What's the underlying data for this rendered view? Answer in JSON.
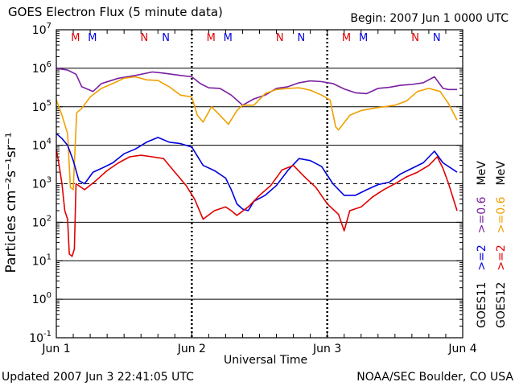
{
  "header": {
    "title": "GOES Electron Flux (5 minute data)",
    "begin": "Begin: 2007 Jun 1 0000 UTC"
  },
  "footer": {
    "updated": "Updated 2007 Jun  3 22:41:05 UTC",
    "source": "NOAA/SEC Boulder, CO USA"
  },
  "chart_data": {
    "type": "line",
    "title": "GOES Electron Flux (5 minute data)",
    "xlabel": "Universal Time",
    "ylabel": "Particles cm⁻²s⁻¹sr⁻¹",
    "yscale": "log",
    "ylim": [
      0.1,
      10000000
    ],
    "xlim_hours": [
      0,
      72
    ],
    "x_ticks": [
      {
        "hour": 0,
        "label": "Jun 1"
      },
      {
        "hour": 24,
        "label": "Jun 2"
      },
      {
        "hour": 48,
        "label": "Jun 3"
      },
      {
        "hour": 72,
        "label": "Jun 4"
      }
    ],
    "y_ticks": [
      {
        "value": 0.1,
        "base": "10",
        "exp": "-1"
      },
      {
        "value": 1,
        "base": "10",
        "exp": "0"
      },
      {
        "value": 10,
        "base": "10",
        "exp": "1"
      },
      {
        "value": 100,
        "base": "10",
        "exp": "2"
      },
      {
        "value": 1000,
        "base": "10",
        "exp": "3"
      },
      {
        "value": 10000,
        "base": "10",
        "exp": "4"
      },
      {
        "value": 100000,
        "base": "10",
        "exp": "5"
      },
      {
        "value": 1000000,
        "base": "10",
        "exp": "6"
      },
      {
        "value": 10000000,
        "base": "10",
        "exp": "7"
      }
    ],
    "threshold": {
      "value": 1000,
      "style": "dashed"
    },
    "day_markers": [
      {
        "day": 0,
        "labels": [
          {
            "text": "M",
            "color": "#e00000",
            "hour": 3.4
          },
          {
            "text": "M",
            "color": "#0000e0",
            "hour": 6.4
          },
          {
            "text": "N",
            "color": "#e00000",
            "hour": 15.6
          },
          {
            "text": "N",
            "color": "#0000e0",
            "hour": 19.4
          }
        ]
      },
      {
        "day": 1,
        "labels": [
          {
            "text": "M",
            "color": "#e00000",
            "hour": 27.4
          },
          {
            "text": "M",
            "color": "#0000e0",
            "hour": 30.4
          },
          {
            "text": "N",
            "color": "#e00000",
            "hour": 39.6
          },
          {
            "text": "N",
            "color": "#0000e0",
            "hour": 43.4
          }
        ]
      },
      {
        "day": 2,
        "labels": [
          {
            "text": "M",
            "color": "#e00000",
            "hour": 51.4
          },
          {
            "text": "M",
            "color": "#0000e0",
            "hour": 54.4
          },
          {
            "text": "N",
            "color": "#e00000",
            "hour": 63.6
          },
          {
            "text": "N",
            "color": "#0000e0",
            "hour": 67.4
          }
        ]
      }
    ],
    "right_legend": {
      "col1": [
        {
          "text": "GOES11",
          "color": "#000000"
        },
        {
          "text": ">=2",
          "color": "#0000e0"
        },
        {
          "text": ">=0.6",
          "color": "#7a1fa2"
        },
        {
          "text": "MeV",
          "color": "#000000"
        }
      ],
      "col2": [
        {
          "text": "GOES12",
          "color": "#000000"
        },
        {
          "text": ">=2",
          "color": "#e00000"
        },
        {
          "text": ">=0.6",
          "color": "#f0a000"
        },
        {
          "text": "MeV",
          "color": "#000000"
        }
      ]
    },
    "series": [
      {
        "name": "GOES11 >=0.6 MeV",
        "color": "#7a1fa2",
        "points": [
          [
            0,
            1000000
          ],
          [
            2,
            900000
          ],
          [
            3.5,
            700000
          ],
          [
            4.5,
            330000
          ],
          [
            6.5,
            250000
          ],
          [
            8,
            400000
          ],
          [
            11,
            550000
          ],
          [
            14,
            650000
          ],
          [
            17,
            800000
          ],
          [
            19,
            750000
          ],
          [
            22,
            650000
          ],
          [
            24,
            600000
          ],
          [
            25.5,
            400000
          ],
          [
            27,
            310000
          ],
          [
            29,
            300000
          ],
          [
            31,
            200000
          ],
          [
            33,
            110000
          ],
          [
            35,
            160000
          ],
          [
            37,
            200000
          ],
          [
            39,
            300000
          ],
          [
            41,
            330000
          ],
          [
            43,
            420000
          ],
          [
            45,
            470000
          ],
          [
            47,
            450000
          ],
          [
            49,
            400000
          ],
          [
            51,
            290000
          ],
          [
            53,
            230000
          ],
          [
            55,
            220000
          ],
          [
            57,
            300000
          ],
          [
            59,
            320000
          ],
          [
            61,
            360000
          ],
          [
            63,
            380000
          ],
          [
            65,
            420000
          ],
          [
            67,
            600000
          ],
          [
            68.5,
            300000
          ],
          [
            69.5,
            280000
          ],
          [
            71,
            280000
          ]
        ]
      },
      {
        "name": "GOES12 >=0.6 MeV",
        "color": "#f0a000",
        "points": [
          [
            0,
            150000
          ],
          [
            1,
            60000
          ],
          [
            2,
            20000
          ],
          [
            2.5,
            800
          ],
          [
            3,
            700
          ],
          [
            3.6,
            70000
          ],
          [
            4.5,
            90000
          ],
          [
            6,
            180000
          ],
          [
            8,
            300000
          ],
          [
            10,
            400000
          ],
          [
            12,
            550000
          ],
          [
            14,
            600000
          ],
          [
            16,
            500000
          ],
          [
            18,
            480000
          ],
          [
            20,
            330000
          ],
          [
            22,
            200000
          ],
          [
            24,
            180000
          ],
          [
            25,
            60000
          ],
          [
            26,
            40000
          ],
          [
            27.5,
            100000
          ],
          [
            29,
            60000
          ],
          [
            30.5,
            35000
          ],
          [
            32,
            80000
          ],
          [
            33,
            110000
          ],
          [
            35,
            110000
          ],
          [
            37,
            220000
          ],
          [
            39,
            280000
          ],
          [
            41,
            300000
          ],
          [
            43,
            310000
          ],
          [
            45,
            270000
          ],
          [
            47,
            200000
          ],
          [
            48.5,
            150000
          ],
          [
            49.5,
            30000
          ],
          [
            50,
            25000
          ],
          [
            52,
            60000
          ],
          [
            54,
            80000
          ],
          [
            56,
            90000
          ],
          [
            58,
            100000
          ],
          [
            60,
            110000
          ],
          [
            62,
            140000
          ],
          [
            64,
            250000
          ],
          [
            66,
            300000
          ],
          [
            68,
            250000
          ],
          [
            69.5,
            120000
          ],
          [
            71,
            45000
          ]
        ]
      },
      {
        "name": "GOES11 >=2 MeV",
        "color": "#0000e0",
        "points": [
          [
            0,
            20000
          ],
          [
            1,
            15000
          ],
          [
            2,
            10000
          ],
          [
            3,
            4000
          ],
          [
            4,
            1200
          ],
          [
            5,
            1000
          ],
          [
            6.5,
            2000
          ],
          [
            8,
            2500
          ],
          [
            10,
            3500
          ],
          [
            12,
            6000
          ],
          [
            14,
            8000
          ],
          [
            16,
            12000
          ],
          [
            18,
            16000
          ],
          [
            20,
            12000
          ],
          [
            22,
            11000
          ],
          [
            24,
            9000
          ],
          [
            26,
            3000
          ],
          [
            28,
            2200
          ],
          [
            30,
            1400
          ],
          [
            31,
            700
          ],
          [
            32,
            300
          ],
          [
            33,
            220
          ],
          [
            34,
            200
          ],
          [
            35,
            350
          ],
          [
            37,
            500
          ],
          [
            39,
            900
          ],
          [
            41,
            2200
          ],
          [
            43,
            4500
          ],
          [
            45,
            4000
          ],
          [
            47,
            2800
          ],
          [
            49,
            1000
          ],
          [
            51,
            500
          ],
          [
            53,
            500
          ],
          [
            55,
            700
          ],
          [
            57,
            950
          ],
          [
            59,
            1100
          ],
          [
            61,
            1800
          ],
          [
            63,
            2500
          ],
          [
            65,
            3500
          ],
          [
            67,
            7000
          ],
          [
            68.5,
            3500
          ],
          [
            70,
            2500
          ],
          [
            71,
            2000
          ]
        ]
      },
      {
        "name": "GOES12 >=2 MeV",
        "color": "#e00000",
        "points": [
          [
            0,
            8000
          ],
          [
            0.5,
            3000
          ],
          [
            1,
            1000
          ],
          [
            1.5,
            200
          ],
          [
            2,
            120
          ],
          [
            2.3,
            15
          ],
          [
            2.8,
            13
          ],
          [
            3.2,
            20
          ],
          [
            3.5,
            1000
          ],
          [
            5,
            700
          ],
          [
            7,
            1200
          ],
          [
            9,
            2200
          ],
          [
            11,
            3500
          ],
          [
            13,
            5000
          ],
          [
            15,
            5500
          ],
          [
            17,
            5000
          ],
          [
            19,
            4500
          ],
          [
            21,
            2000
          ],
          [
            23,
            900
          ],
          [
            24.5,
            400
          ],
          [
            26,
            120
          ],
          [
            28,
            200
          ],
          [
            30,
            250
          ],
          [
            31,
            200
          ],
          [
            32,
            150
          ],
          [
            34,
            250
          ],
          [
            36,
            500
          ],
          [
            38,
            900
          ],
          [
            40,
            2300
          ],
          [
            42,
            3000
          ],
          [
            44,
            1500
          ],
          [
            46,
            800
          ],
          [
            48,
            300
          ],
          [
            50,
            160
          ],
          [
            51,
            60
          ],
          [
            52,
            200
          ],
          [
            54,
            250
          ],
          [
            56,
            450
          ],
          [
            58,
            700
          ],
          [
            60,
            1000
          ],
          [
            62,
            1500
          ],
          [
            64,
            2000
          ],
          [
            66,
            3000
          ],
          [
            67.5,
            5000
          ],
          [
            68.5,
            2500
          ],
          [
            69.5,
            1000
          ],
          [
            71,
            200
          ]
        ]
      }
    ]
  }
}
